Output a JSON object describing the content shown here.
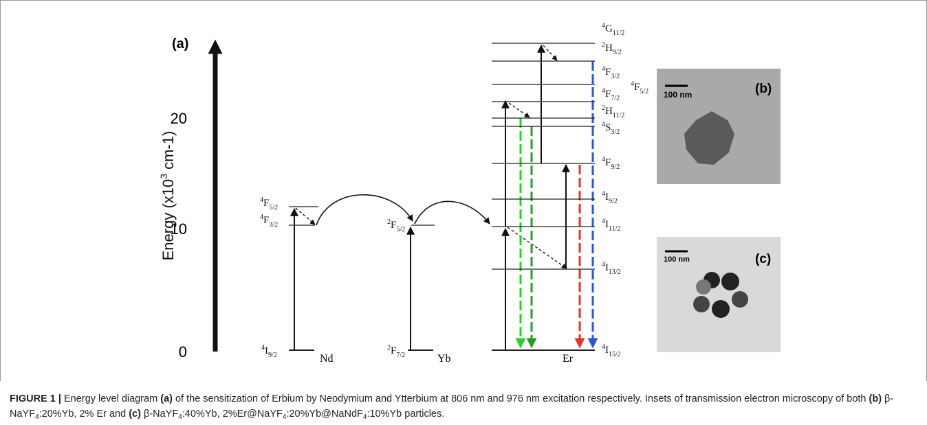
{
  "panel_label": "(a)",
  "axis": {
    "label": [
      "Energy (x10",
      "3",
      " cm-1)"
    ],
    "ticks": [
      0,
      10,
      20
    ]
  },
  "ions": [
    "Nd",
    "Yb",
    "Er"
  ],
  "levels": {
    "nd": [
      {
        "sup": "4",
        "term": "F",
        "sub": "5/2"
      },
      {
        "sup": "4",
        "term": "F",
        "sub": "3/2"
      },
      {
        "sup": "4",
        "term": "I",
        "sub": "9/2"
      }
    ],
    "yb": [
      {
        "sup": "2",
        "term": "F",
        "sub": "5/2"
      },
      {
        "sup": "2",
        "term": "F",
        "sub": "7/2"
      }
    ],
    "er": [
      {
        "sup": "4",
        "term": "G",
        "sub": "11/2"
      },
      {
        "sup": "2",
        "term": "H",
        "sub": "9/2"
      },
      {
        "sup": "4",
        "term": "F",
        "sub": "3/2"
      },
      {
        "sup": "4",
        "term": "F",
        "sub": "5/2"
      },
      {
        "sup": "4",
        "term": "F",
        "sub": "7/2"
      },
      {
        "sup": "2",
        "term": "H",
        "sub": "11/2"
      },
      {
        "sup": "4",
        "term": "S",
        "sub": "3/2"
      },
      {
        "sup": "4",
        "term": "F",
        "sub": "9/2"
      },
      {
        "sup": "4",
        "term": "I",
        "sub": "9/2"
      },
      {
        "sup": "4",
        "term": "I",
        "sub": "11/2"
      },
      {
        "sup": "4",
        "term": "I",
        "sub": "13/2"
      },
      {
        "sup": "4",
        "term": "I",
        "sub": "15/2"
      }
    ]
  },
  "insets": [
    {
      "label": "(b)",
      "scale": "100 nm"
    },
    {
      "label": "(c)",
      "scale": "100 nm"
    }
  ],
  "caption": [
    {
      "text": "FIGURE 1 |",
      "style": "b"
    },
    {
      "text": " Energy level diagram ",
      "style": ""
    },
    {
      "text": "(a)",
      "style": "b"
    },
    {
      "text": " of the sensitization of Erbium by Neodymium and Ytterbium at 806 nm and 976 nm excitation respectively. Insets of transmission electron microscopy of both ",
      "style": ""
    },
    {
      "text": "(b)",
      "style": "b"
    },
    {
      "text": " β-NaYF",
      "style": ""
    },
    {
      "text": "4",
      "style": "sub"
    },
    {
      "text": ":20%Yb, 2% Er and ",
      "style": ""
    },
    {
      "text": "(c)",
      "style": "b"
    },
    {
      "text": " β-NaYF",
      "style": ""
    },
    {
      "text": "4",
      "style": "sub"
    },
    {
      "text": ":40%Yb, 2%Er@NaYF",
      "style": ""
    },
    {
      "text": "4",
      "style": "sub"
    },
    {
      "text": ":20%Yb@NaNdF",
      "style": ""
    },
    {
      "text": "4",
      "style": "sub"
    },
    {
      "text": ":10%Yb particles.",
      "style": ""
    }
  ]
}
